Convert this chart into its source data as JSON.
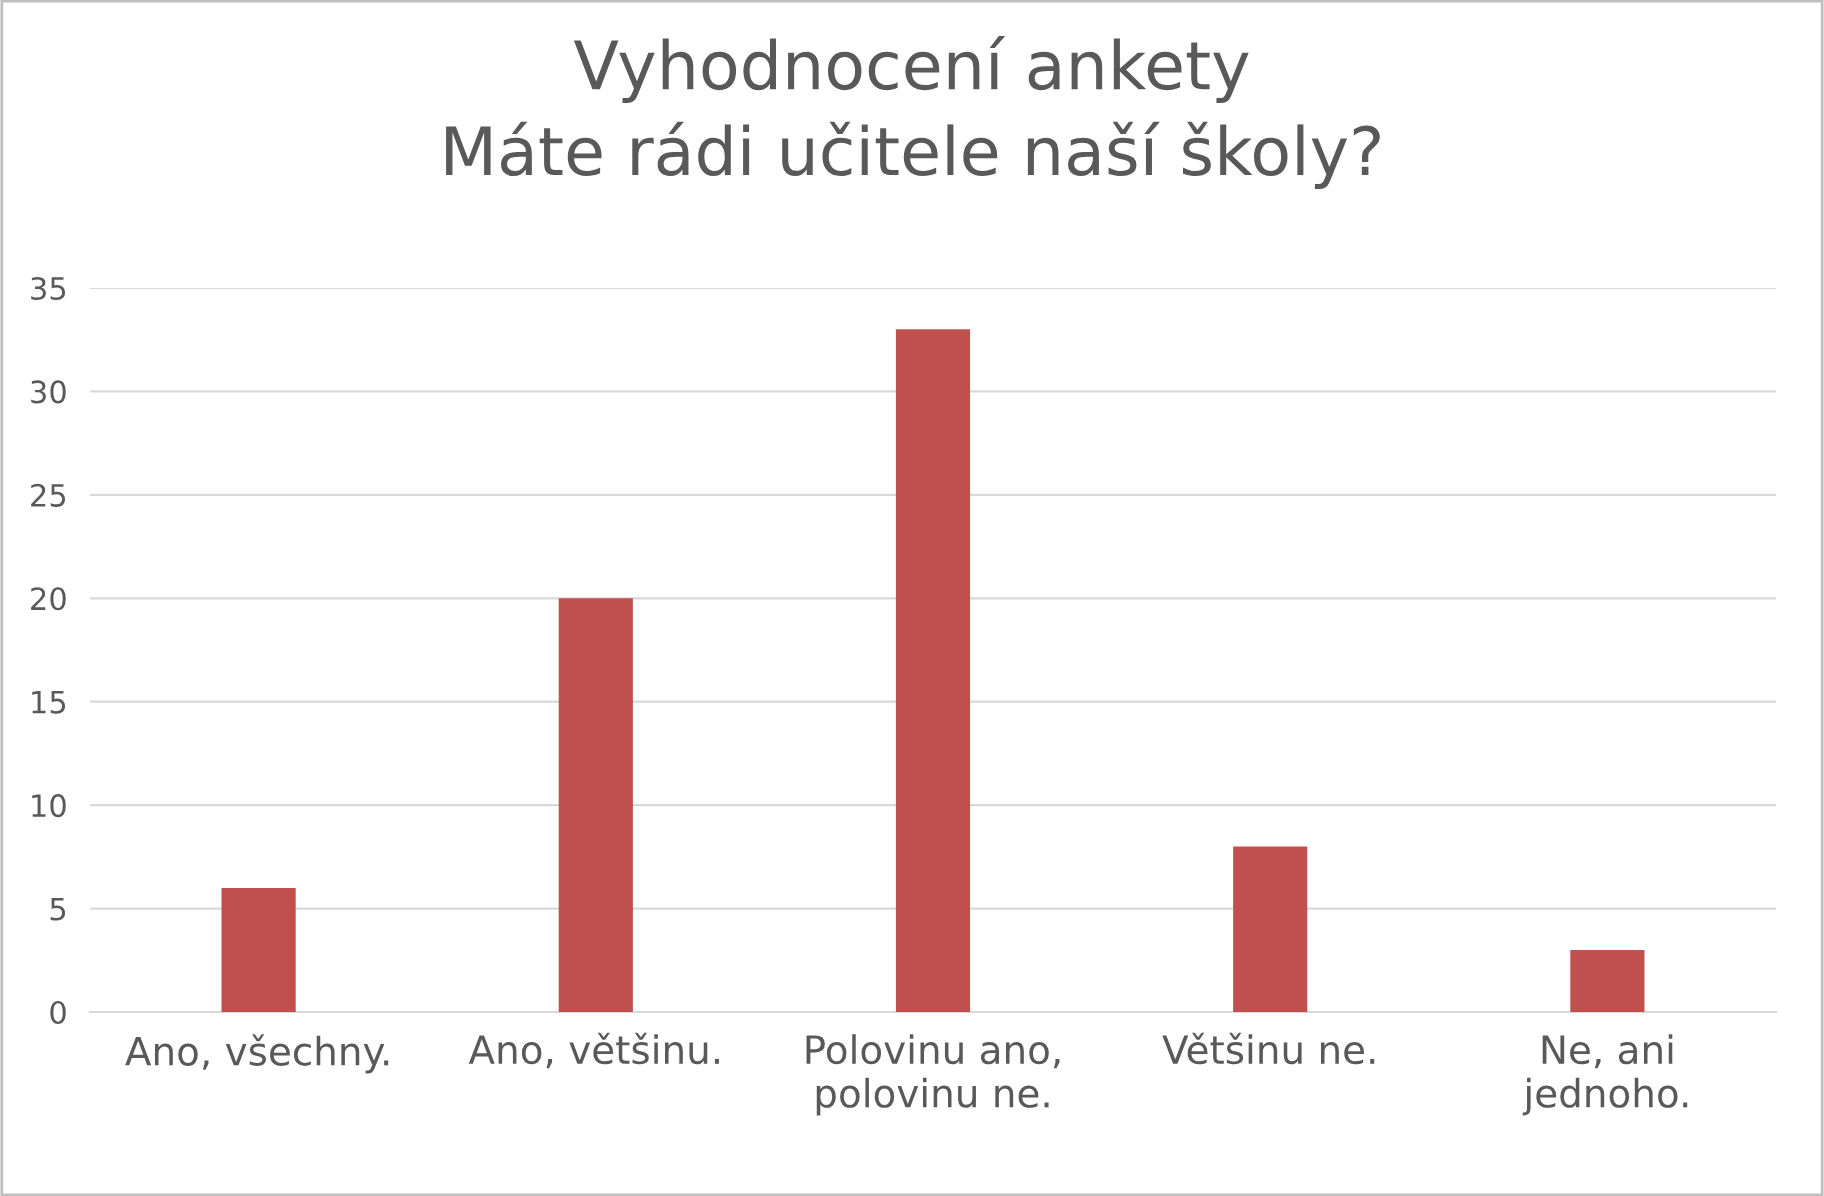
{
  "chart_data": {
    "type": "bar",
    "title": "Vyhodnocení ankety\nMáte rádi učitele naší školy?",
    "categories": [
      "Ano, všechny.",
      "Ano, většinu.",
      "Polovinu ano,\npolovinu ne.",
      "Většinu ne.",
      "Ne, ani\njednoho."
    ],
    "values": [
      6,
      20,
      33,
      8,
      3
    ],
    "color": "#c0504d",
    "ylim": [
      0,
      35
    ],
    "yticks": [
      0,
      5,
      10,
      15,
      20,
      25,
      30,
      35
    ],
    "grid": "y",
    "legend": false
  }
}
